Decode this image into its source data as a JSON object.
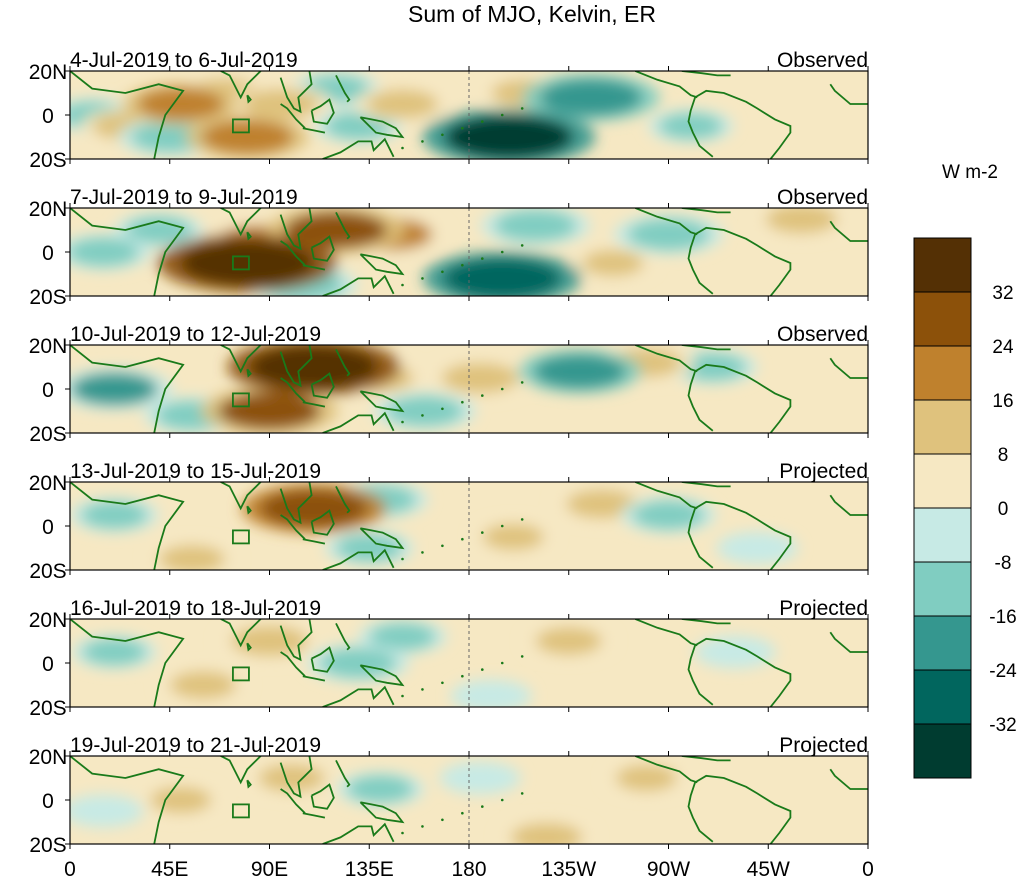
{
  "chart_data": {
    "type": "heatmap",
    "title": "Sum of MJO, Kelvin, ER",
    "colorbar_label": "W m-2",
    "x_ticks": [
      "0",
      "45E",
      "90E",
      "135E",
      "180",
      "135W",
      "90W",
      "45W",
      "0"
    ],
    "y_ticks": [
      "20N",
      "0",
      "20S"
    ],
    "x_range_deg": [
      0,
      360
    ],
    "y_range_deg": [
      -20,
      20
    ],
    "dateline_dashed": true,
    "colorbar": {
      "levels": [
        32,
        24,
        16,
        8,
        0,
        -8,
        -16,
        -24,
        -32
      ],
      "colors": [
        "#543005",
        "#8c510a",
        "#bf812d",
        "#dfc27d",
        "#f6e8c3",
        "#c7eae5",
        "#80cdc1",
        "#35978f",
        "#01665e",
        "#003c30"
      ]
    },
    "panels": [
      {
        "date_range": "4-Jul-2019 to 6-Jul-2019",
        "status": "Observed",
        "anomalies": [
          {
            "lon": 50,
            "lat": 5,
            "value": 18
          },
          {
            "lon": 45,
            "lat": -10,
            "value": -14
          },
          {
            "lon": 80,
            "lat": -10,
            "value": 20
          },
          {
            "lon": 95,
            "lat": 5,
            "value": 14
          },
          {
            "lon": 70,
            "lat": 10,
            "value": 12
          },
          {
            "lon": 120,
            "lat": 12,
            "value": -10
          },
          {
            "lon": 130,
            "lat": -5,
            "value": -10
          },
          {
            "lon": 150,
            "lat": 5,
            "value": 12
          },
          {
            "lon": 198,
            "lat": -10,
            "value": -34
          },
          {
            "lon": 235,
            "lat": 8,
            "value": -24
          },
          {
            "lon": 205,
            "lat": 10,
            "value": 10
          },
          {
            "lon": 280,
            "lat": -5,
            "value": -9
          },
          {
            "lon": 10,
            "lat": 0,
            "value": -9
          },
          {
            "lon": 25,
            "lat": -5,
            "value": 10
          }
        ]
      },
      {
        "date_range": "7-Jul-2019 to 9-Jul-2019",
        "status": "Observed",
        "anomalies": [
          {
            "lon": 80,
            "lat": -5,
            "value": 36
          },
          {
            "lon": 85,
            "lat": 5,
            "value": 16
          },
          {
            "lon": 120,
            "lat": 10,
            "value": 24
          },
          {
            "lon": 145,
            "lat": 8,
            "value": 16
          },
          {
            "lon": 195,
            "lat": -12,
            "value": -30
          },
          {
            "lon": 210,
            "lat": 12,
            "value": -16
          },
          {
            "lon": 270,
            "lat": 8,
            "value": -16
          },
          {
            "lon": 330,
            "lat": 15,
            "value": 12
          },
          {
            "lon": 15,
            "lat": 0,
            "value": -12
          },
          {
            "lon": 40,
            "lat": 10,
            "value": -10
          },
          {
            "lon": 105,
            "lat": -15,
            "value": -16
          },
          {
            "lon": 245,
            "lat": -5,
            "value": 8
          }
        ]
      },
      {
        "date_range": "10-Jul-2019 to 12-Jul-2019",
        "status": "Observed",
        "anomalies": [
          {
            "lon": 110,
            "lat": 10,
            "value": 34
          },
          {
            "lon": 90,
            "lat": -10,
            "value": 24
          },
          {
            "lon": 20,
            "lat": 0,
            "value": -18
          },
          {
            "lon": 55,
            "lat": -12,
            "value": -12
          },
          {
            "lon": 160,
            "lat": -10,
            "value": -14
          },
          {
            "lon": 185,
            "lat": 5,
            "value": 14
          },
          {
            "lon": 230,
            "lat": 8,
            "value": -20
          },
          {
            "lon": 260,
            "lat": 12,
            "value": 12
          },
          {
            "lon": 290,
            "lat": 10,
            "value": -10
          },
          {
            "lon": 140,
            "lat": 5,
            "value": 10
          }
        ]
      },
      {
        "date_range": "13-Jul-2019 to 15-Jul-2019",
        "status": "Projected",
        "anomalies": [
          {
            "lon": 110,
            "lat": 8,
            "value": 26
          },
          {
            "lon": 140,
            "lat": 12,
            "value": -12
          },
          {
            "lon": 20,
            "lat": 5,
            "value": -10
          },
          {
            "lon": 55,
            "lat": -15,
            "value": 10
          },
          {
            "lon": 135,
            "lat": -10,
            "value": -10
          },
          {
            "lon": 200,
            "lat": -5,
            "value": 8
          },
          {
            "lon": 240,
            "lat": 10,
            "value": 12
          },
          {
            "lon": 270,
            "lat": 5,
            "value": -12
          },
          {
            "lon": 310,
            "lat": -10,
            "value": -8
          }
        ]
      },
      {
        "date_range": "16-Jul-2019 to 18-Jul-2019",
        "status": "Projected",
        "anomalies": [
          {
            "lon": 90,
            "lat": 10,
            "value": 14
          },
          {
            "lon": 130,
            "lat": 0,
            "value": -14
          },
          {
            "lon": 150,
            "lat": 12,
            "value": -10
          },
          {
            "lon": 60,
            "lat": -10,
            "value": 10
          },
          {
            "lon": 20,
            "lat": 5,
            "value": -9
          },
          {
            "lon": 225,
            "lat": 10,
            "value": 10
          },
          {
            "lon": 300,
            "lat": 5,
            "value": -8
          },
          {
            "lon": 190,
            "lat": -15,
            "value": -8
          }
        ]
      },
      {
        "date_range": "19-Jul-2019 to 21-Jul-2019",
        "status": "Projected",
        "anomalies": [
          {
            "lon": 100,
            "lat": 10,
            "value": 10
          },
          {
            "lon": 140,
            "lat": 5,
            "value": -10
          },
          {
            "lon": 50,
            "lat": 0,
            "value": 8
          },
          {
            "lon": 15,
            "lat": -5,
            "value": -8
          },
          {
            "lon": 215,
            "lat": -17,
            "value": 12
          },
          {
            "lon": 260,
            "lat": 10,
            "value": 8
          },
          {
            "lon": 185,
            "lat": 10,
            "value": -8
          }
        ]
      }
    ]
  }
}
